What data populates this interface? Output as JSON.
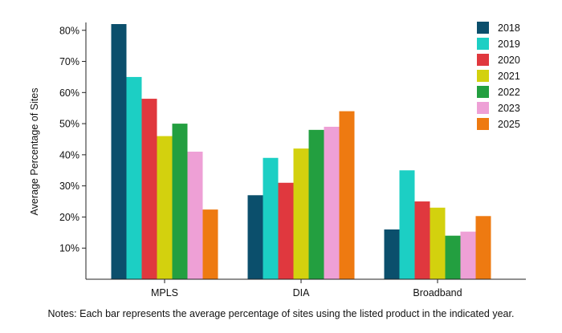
{
  "chart_data": {
    "type": "bar",
    "title": "",
    "xlabel": "",
    "ylabel": "Average Percentage of Sites",
    "ylim": [
      0,
      82
    ],
    "yticks": [
      10,
      20,
      30,
      40,
      50,
      60,
      70,
      80
    ],
    "ytick_labels": [
      "10%",
      "20%",
      "30%",
      "40%",
      "50%",
      "60%",
      "70%",
      "80%"
    ],
    "categories": [
      "MPLS",
      "DIA",
      "Broadband"
    ],
    "series": [
      {
        "name": "2018",
        "color": "#0b4f6c",
        "values": [
          82,
          27,
          16
        ]
      },
      {
        "name": "2019",
        "color": "#1ccfc4",
        "values": [
          65,
          39,
          35
        ]
      },
      {
        "name": "2020",
        "color": "#e0383e",
        "values": [
          58,
          31,
          25
        ]
      },
      {
        "name": "2021",
        "color": "#d3d10e",
        "values": [
          46,
          42,
          23
        ]
      },
      {
        "name": "2022",
        "color": "#239f40",
        "values": [
          50,
          48,
          14
        ]
      },
      {
        "name": "2023",
        "color": "#eea0d6",
        "values": [
          41,
          49,
          15.3
        ]
      },
      {
        "name": "2025",
        "color": "#ee7a11",
        "values": [
          22.4,
          54,
          20.3
        ]
      }
    ],
    "grid": false,
    "legend_position": "top-right"
  },
  "notes": "Notes: Each bar represents the average percentage of sites using the listed product in the indicated year."
}
